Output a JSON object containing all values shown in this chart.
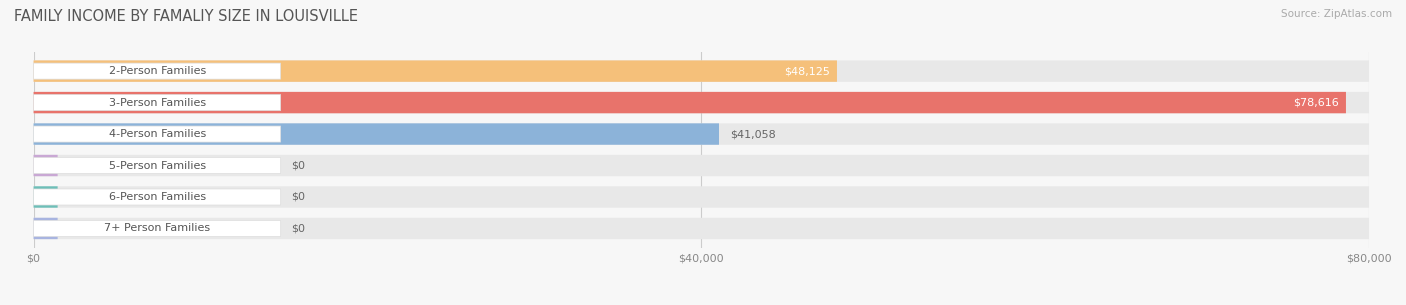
{
  "title": "FAMILY INCOME BY FAMALIY SIZE IN LOUISVILLE",
  "source": "Source: ZipAtlas.com",
  "categories": [
    "2-Person Families",
    "3-Person Families",
    "4-Person Families",
    "5-Person Families",
    "6-Person Families",
    "7+ Person Families"
  ],
  "values": [
    48125,
    78616,
    41058,
    0,
    0,
    0
  ],
  "bar_colors": [
    "#f5c07a",
    "#e8736b",
    "#8cb3d9",
    "#c9a8d4",
    "#6dbfb8",
    "#a8b4e0"
  ],
  "value_label_inside": [
    true,
    true,
    false,
    false,
    false,
    false
  ],
  "max_value": 80000,
  "x_ticks": [
    0,
    40000,
    80000
  ],
  "x_tick_labels": [
    "$0",
    "$40,000",
    "$80,000"
  ],
  "value_labels": [
    "$48,125",
    "$78,616",
    "$41,058",
    "$0",
    "$0",
    "$0"
  ],
  "background_color": "#f7f7f7",
  "bar_background": "#e8e8e8",
  "title_fontsize": 10.5,
  "label_fontsize": 8.0,
  "value_fontsize": 8.0
}
